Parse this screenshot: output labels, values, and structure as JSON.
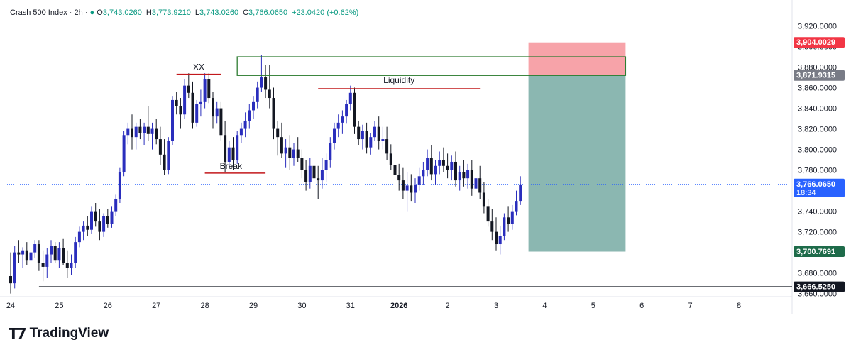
{
  "header": {
    "symbol": "Crash 500 Index",
    "interval": "2h",
    "open_label": "O",
    "open": "3,743.0260",
    "high_label": "H",
    "high": "3,773.9210",
    "low_label": "L",
    "low": "3,743.0260",
    "close_label": "C",
    "close": "3,766.0650",
    "change": "+23.0420 (+0.62%)"
  },
  "brand": {
    "name": "TradingView"
  },
  "colors": {
    "up": "#089981",
    "candle": "#131722",
    "blue_candle": "#2a2ebd",
    "stop_zone": "#f7a3a9",
    "target_zone": "#8bb7b1",
    "red_line": "#c2181c",
    "green_box": "#2e7d32"
  },
  "chart_data": {
    "type": "candlestick",
    "ylim": [
      3657,
      3930
    ],
    "yticks": [
      "3,920.0000",
      "3,900.0000",
      "3,880.0000",
      "3,860.0000",
      "3,840.0000",
      "3,820.0000",
      "3,800.0000",
      "3,780.0000",
      "3,760.0000",
      "3,740.0000",
      "3,720.0000",
      "3,700.0000",
      "3,680.0000",
      "3,660.0000"
    ],
    "ytick_values": [
      3920,
      3900,
      3880,
      3860,
      3840,
      3820,
      3800,
      3780,
      3760,
      3740,
      3720,
      3700,
      3680,
      3660
    ],
    "xticks": [
      "24",
      "25",
      "26",
      "27",
      "28",
      "29",
      "30",
      "31",
      "2026",
      "2",
      "3",
      "4",
      "5",
      "6",
      "7",
      "8"
    ],
    "xtick_index": [
      0,
      12,
      24,
      36,
      48,
      60,
      72,
      84,
      96,
      108,
      120,
      132,
      144,
      156,
      168,
      180
    ],
    "candles": [
      [
        3677,
        3700,
        3660,
        3670
      ],
      [
        3670,
        3706,
        3665,
        3700
      ],
      [
        3700,
        3712,
        3690,
        3698
      ],
      [
        3698,
        3705,
        3685,
        3702
      ],
      [
        3702,
        3710,
        3688,
        3692
      ],
      [
        3692,
        3708,
        3680,
        3700
      ],
      [
        3700,
        3712,
        3695,
        3708
      ],
      [
        3708,
        3712,
        3682,
        3690
      ],
      [
        3690,
        3702,
        3672,
        3686
      ],
      [
        3686,
        3704,
        3675,
        3698
      ],
      [
        3698,
        3712,
        3690,
        3706
      ],
      [
        3706,
        3710,
        3690,
        3692
      ],
      [
        3692,
        3710,
        3685,
        3704
      ],
      [
        3704,
        3713,
        3688,
        3690
      ],
      [
        3690,
        3702,
        3675,
        3685
      ],
      [
        3685,
        3698,
        3678,
        3690
      ],
      [
        3690,
        3715,
        3685,
        3710
      ],
      [
        3710,
        3725,
        3705,
        3720
      ],
      [
        3720,
        3730,
        3712,
        3726
      ],
      [
        3726,
        3735,
        3716,
        3722
      ],
      [
        3722,
        3745,
        3718,
        3740
      ],
      [
        3740,
        3748,
        3725,
        3730
      ],
      [
        3730,
        3742,
        3712,
        3720
      ],
      [
        3720,
        3738,
        3715,
        3735
      ],
      [
        3735,
        3742,
        3724,
        3728
      ],
      [
        3728,
        3745,
        3724,
        3740
      ],
      [
        3740,
        3756,
        3735,
        3752
      ],
      [
        3752,
        3782,
        3748,
        3778
      ],
      [
        3778,
        3818,
        3774,
        3814
      ],
      [
        3814,
        3826,
        3805,
        3820
      ],
      [
        3820,
        3834,
        3800,
        3812
      ],
      [
        3812,
        3826,
        3800,
        3822
      ],
      [
        3822,
        3830,
        3810,
        3816
      ],
      [
        3816,
        3826,
        3804,
        3822
      ],
      [
        3822,
        3842,
        3808,
        3815
      ],
      [
        3815,
        3826,
        3800,
        3820
      ],
      [
        3820,
        3830,
        3805,
        3810
      ],
      [
        3810,
        3822,
        3785,
        3795
      ],
      [
        3795,
        3810,
        3775,
        3780
      ],
      [
        3780,
        3812,
        3776,
        3808
      ],
      [
        3808,
        3852,
        3804,
        3848
      ],
      [
        3848,
        3856,
        3834,
        3842
      ],
      [
        3842,
        3850,
        3820,
        3834
      ],
      [
        3834,
        3868,
        3830,
        3862
      ],
      [
        3862,
        3874,
        3850,
        3855
      ],
      [
        3855,
        3866,
        3820,
        3826
      ],
      [
        3826,
        3848,
        3822,
        3844
      ],
      [
        3844,
        3858,
        3832,
        3846
      ],
      [
        3846,
        3874,
        3840,
        3868
      ],
      [
        3868,
        3874,
        3845,
        3850
      ],
      [
        3850,
        3856,
        3820,
        3832
      ],
      [
        3832,
        3846,
        3825,
        3840
      ],
      [
        3840,
        3846,
        3808,
        3814
      ],
      [
        3814,
        3828,
        3778,
        3788
      ],
      [
        3788,
        3808,
        3782,
        3802
      ],
      [
        3802,
        3812,
        3780,
        3790
      ],
      [
        3790,
        3818,
        3786,
        3814
      ],
      [
        3814,
        3826,
        3806,
        3820
      ],
      [
        3820,
        3836,
        3812,
        3828
      ],
      [
        3828,
        3844,
        3820,
        3838
      ],
      [
        3838,
        3852,
        3830,
        3846
      ],
      [
        3846,
        3866,
        3840,
        3860
      ],
      [
        3860,
        3892,
        3856,
        3870
      ],
      [
        3870,
        3882,
        3850,
        3858
      ],
      [
        3858,
        3882,
        3840,
        3850
      ],
      [
        3850,
        3860,
        3810,
        3820
      ],
      [
        3820,
        3828,
        3794,
        3812
      ],
      [
        3812,
        3826,
        3792,
        3796
      ],
      [
        3796,
        3810,
        3782,
        3802
      ],
      [
        3802,
        3814,
        3780,
        3792
      ],
      [
        3792,
        3806,
        3784,
        3800
      ],
      [
        3800,
        3812,
        3788,
        3792
      ],
      [
        3792,
        3800,
        3772,
        3780
      ],
      [
        3780,
        3790,
        3760,
        3768
      ],
      [
        3768,
        3792,
        3762,
        3784
      ],
      [
        3784,
        3796,
        3766,
        3772
      ],
      [
        3772,
        3784,
        3752,
        3770
      ],
      [
        3770,
        3792,
        3762,
        3780
      ],
      [
        3780,
        3796,
        3768,
        3790
      ],
      [
        3790,
        3812,
        3782,
        3806
      ],
      [
        3806,
        3826,
        3800,
        3820
      ],
      [
        3820,
        3834,
        3812,
        3826
      ],
      [
        3826,
        3838,
        3815,
        3832
      ],
      [
        3832,
        3848,
        3825,
        3844
      ],
      [
        3844,
        3862,
        3838,
        3855
      ],
      [
        3855,
        3860,
        3815,
        3822
      ],
      [
        3822,
        3828,
        3804,
        3810
      ],
      [
        3810,
        3824,
        3800,
        3818
      ],
      [
        3818,
        3826,
        3796,
        3802
      ],
      [
        3802,
        3816,
        3795,
        3812
      ],
      [
        3812,
        3828,
        3808,
        3822
      ],
      [
        3822,
        3832,
        3800,
        3808
      ],
      [
        3808,
        3822,
        3800,
        3810
      ],
      [
        3810,
        3822,
        3790,
        3796
      ],
      [
        3796,
        3805,
        3780,
        3785
      ],
      [
        3785,
        3795,
        3768,
        3775
      ],
      [
        3775,
        3786,
        3760,
        3770
      ],
      [
        3770,
        3782,
        3752,
        3760
      ],
      [
        3760,
        3778,
        3740,
        3765
      ],
      [
        3765,
        3776,
        3750,
        3758
      ],
      [
        3758,
        3772,
        3748,
        3766
      ],
      [
        3766,
        3782,
        3760,
        3774
      ],
      [
        3774,
        3788,
        3766,
        3780
      ],
      [
        3780,
        3800,
        3774,
        3792
      ],
      [
        3792,
        3804,
        3770,
        3776
      ],
      [
        3776,
        3790,
        3766,
        3784
      ],
      [
        3784,
        3798,
        3776,
        3790
      ],
      [
        3790,
        3802,
        3778,
        3784
      ],
      [
        3784,
        3796,
        3772,
        3780
      ],
      [
        3780,
        3794,
        3770,
        3788
      ],
      [
        3788,
        3798,
        3764,
        3770
      ],
      [
        3770,
        3784,
        3760,
        3778
      ],
      [
        3778,
        3790,
        3764,
        3772
      ],
      [
        3772,
        3786,
        3762,
        3780
      ],
      [
        3780,
        3790,
        3755,
        3762
      ],
      [
        3762,
        3778,
        3750,
        3772
      ],
      [
        3772,
        3784,
        3752,
        3758
      ],
      [
        3758,
        3768,
        3738,
        3745
      ],
      [
        3745,
        3752,
        3725,
        3730
      ],
      [
        3730,
        3742,
        3712,
        3720
      ],
      [
        3720,
        3734,
        3702,
        3708
      ],
      [
        3708,
        3726,
        3698,
        3716
      ],
      [
        3716,
        3738,
        3712,
        3734
      ],
      [
        3734,
        3745,
        3720,
        3728
      ],
      [
        3728,
        3746,
        3722,
        3740
      ],
      [
        3740,
        3760,
        3736,
        3750
      ],
      [
        3750,
        3774,
        3746,
        3766
      ]
    ],
    "annotations": {
      "xx": {
        "label": "XX",
        "price": 3873,
        "from": 41,
        "to": 52
      },
      "break": {
        "label": "Break",
        "price": 3777,
        "from": 48,
        "to": 63
      },
      "liquidity": {
        "label": "Liquidity",
        "price": 3859,
        "from": 76,
        "to": 116
      },
      "green_box": {
        "top": 3890,
        "bottom": 3871.9,
        "from": 56,
        "to": 152
      },
      "support": {
        "price": 3666.525,
        "from": 7
      },
      "position": {
        "entry": 3871.9315,
        "stop": 3904.0029,
        "target": 3700.7691,
        "from": 128,
        "to": 152
      }
    },
    "price_labels": [
      {
        "text": "3,904.0029",
        "value": 3904.0029,
        "color": "#f23645"
      },
      {
        "text": "3,871.9315",
        "value": 3871.9315,
        "color": "#787b86"
      },
      {
        "text": "3,766.0650",
        "sub": "18:34",
        "value": 3766.065,
        "color": "#2962ff"
      },
      {
        "text": "3,700.7691",
        "value": 3700.7691,
        "color": "#1e6b4a"
      },
      {
        "text": "3,666.5250",
        "value": 3666.525,
        "color": "#131722"
      }
    ],
    "last_price": 3766.065
  }
}
